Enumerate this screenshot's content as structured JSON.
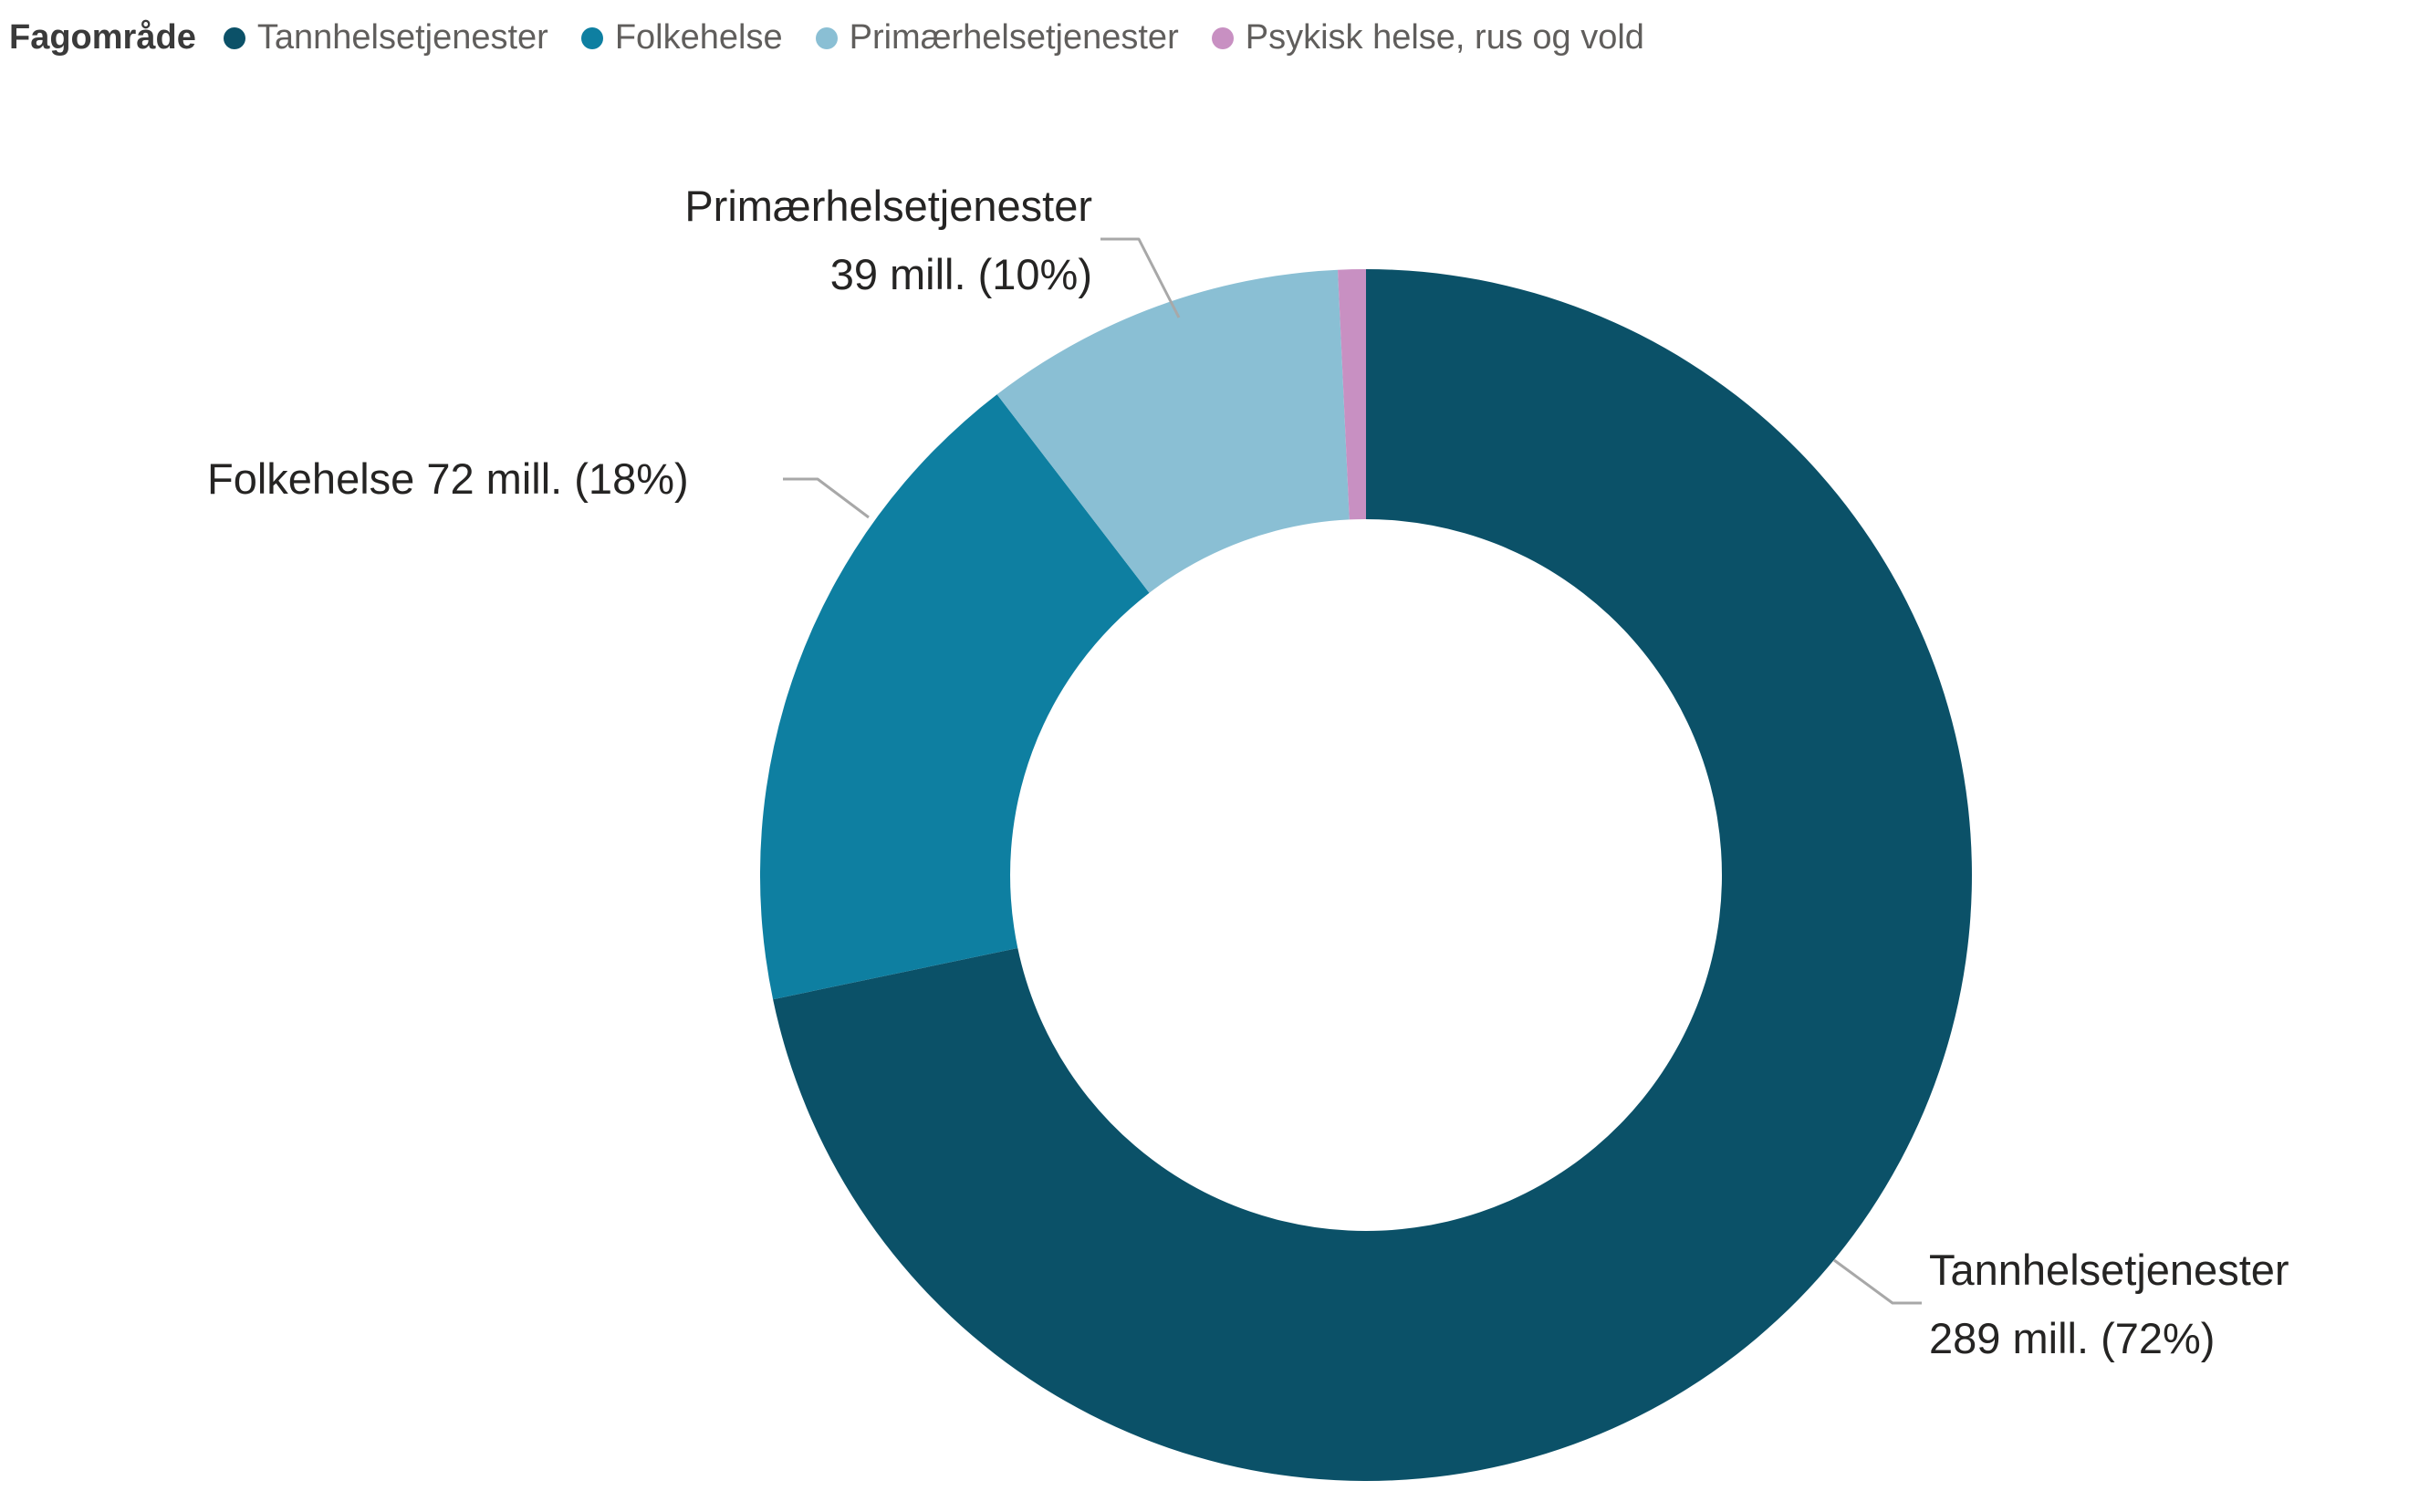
{
  "chart_data": {
    "type": "pie",
    "variant": "donut",
    "title": "",
    "legend_title": "Fagområde",
    "legend_position": "top-left",
    "categories": [
      "Tannhelsetjenester",
      "Folkehelse",
      "Primærhelsetjenester",
      "Psykisk helse, rus og vold"
    ],
    "values": [
      289,
      72,
      39,
      3
    ],
    "value_unit": "mill.",
    "percent_labels": [
      "72%",
      "18%",
      "10%",
      null
    ],
    "colors": [
      "#0B5168",
      "#0E7FA1",
      "#8ABFD4",
      "#C890C2"
    ],
    "inner_radius_ratio": 0.587,
    "start_angle_deg": 0,
    "clockwise": true,
    "labels_shown": [
      "Tannhelsetjenester 289 mill. (72%)",
      "Folkehelse 72 mill. (18%)",
      "Primærhelsetjenester 39 mill. (10%)"
    ]
  },
  "legend": {
    "items": [
      {
        "label": "Tannhelsetjenester"
      },
      {
        "label": "Folkehelse"
      },
      {
        "label": "Primærhelsetjenester"
      },
      {
        "label": "Psykisk helse, rus og vold"
      }
    ]
  },
  "callouts": {
    "primaer": {
      "line1": "Primærhelsetjenester",
      "line2": "39 mill. (10%)"
    },
    "folkehelse": {
      "line1": "Folkehelse 72 mill. (18%)"
    },
    "tannhelse": {
      "line1": "Tannhelsetjenester",
      "line2": "289 mill. (72%)"
    }
  }
}
